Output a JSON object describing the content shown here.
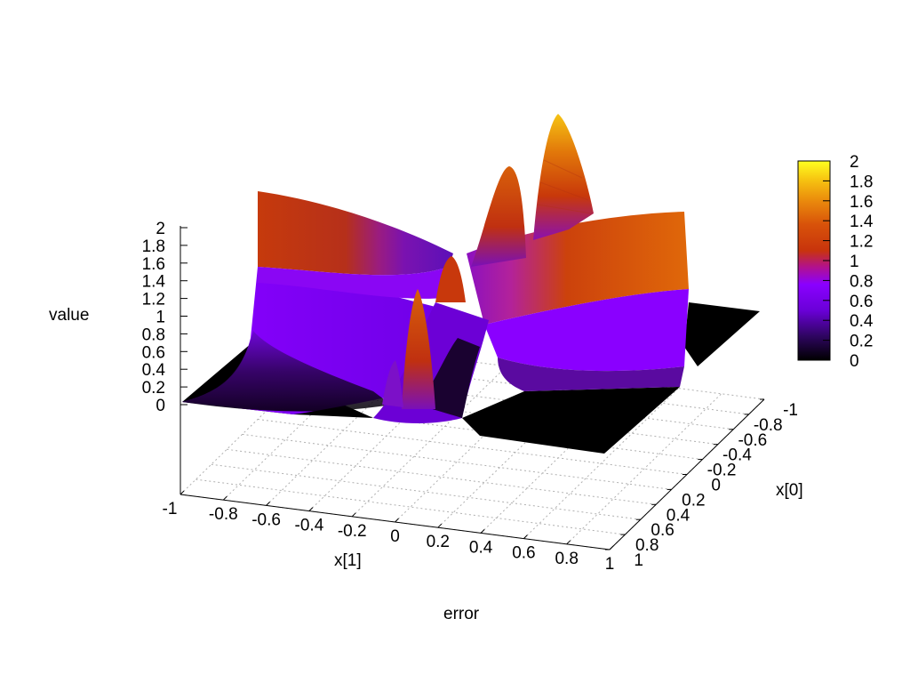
{
  "chart_data": {
    "type": "surface3d",
    "title": "",
    "xlabel": "x[1]",
    "ylabel": "x[0]",
    "zlabel": "value",
    "footer_label": "error",
    "x_ticks": [
      "-1",
      "-0.8",
      "-0.6",
      "-0.4",
      "-0.2",
      "0",
      "0.2",
      "0.4",
      "0.6",
      "0.8",
      "1"
    ],
    "y_ticks": [
      "-1",
      "-0.8",
      "-0.6",
      "-0.4",
      "-0.2",
      "0",
      "0.2",
      "0.4",
      "0.6",
      "0.8",
      "1"
    ],
    "z_ticks": [
      "0",
      "0.2",
      "0.4",
      "0.6",
      "0.8",
      "1",
      "1.2",
      "1.4",
      "1.6",
      "1.8",
      "2"
    ],
    "colorbar_ticks": [
      "0",
      "0.2",
      "0.4",
      "0.6",
      "0.8",
      "1",
      "1.2",
      "1.4",
      "1.6",
      "1.8",
      "2"
    ],
    "xlim": [
      -1,
      1
    ],
    "ylim": [
      -1,
      1
    ],
    "zlim": [
      0,
      2
    ],
    "colormap": [
      "#000000",
      "#5a0a8c",
      "#8a00ff",
      "#b01a86",
      "#c83c0a",
      "#e06a0a",
      "#f0a010",
      "#ffe000",
      "#ffff30"
    ],
    "grid": true,
    "colorbar": "right",
    "surface_features": [
      {
        "kind": "edge ridge",
        "x": -1,
        "y_range": [
          -1,
          1
        ],
        "peak": 1.8
      },
      {
        "kind": "edge ridge",
        "y": 1,
        "x_range": [
          -1,
          1
        ],
        "peak": 1.8
      },
      {
        "kind": "peak",
        "x": 0.5,
        "y": -0.6,
        "value": 1.9
      },
      {
        "kind": "peak",
        "x": 0.3,
        "y": -0.3,
        "value": 1.6
      },
      {
        "kind": "peak",
        "x": 0.1,
        "y": 0.2,
        "value": 1.2
      },
      {
        "kind": "flat region",
        "value": 0
      }
    ]
  }
}
